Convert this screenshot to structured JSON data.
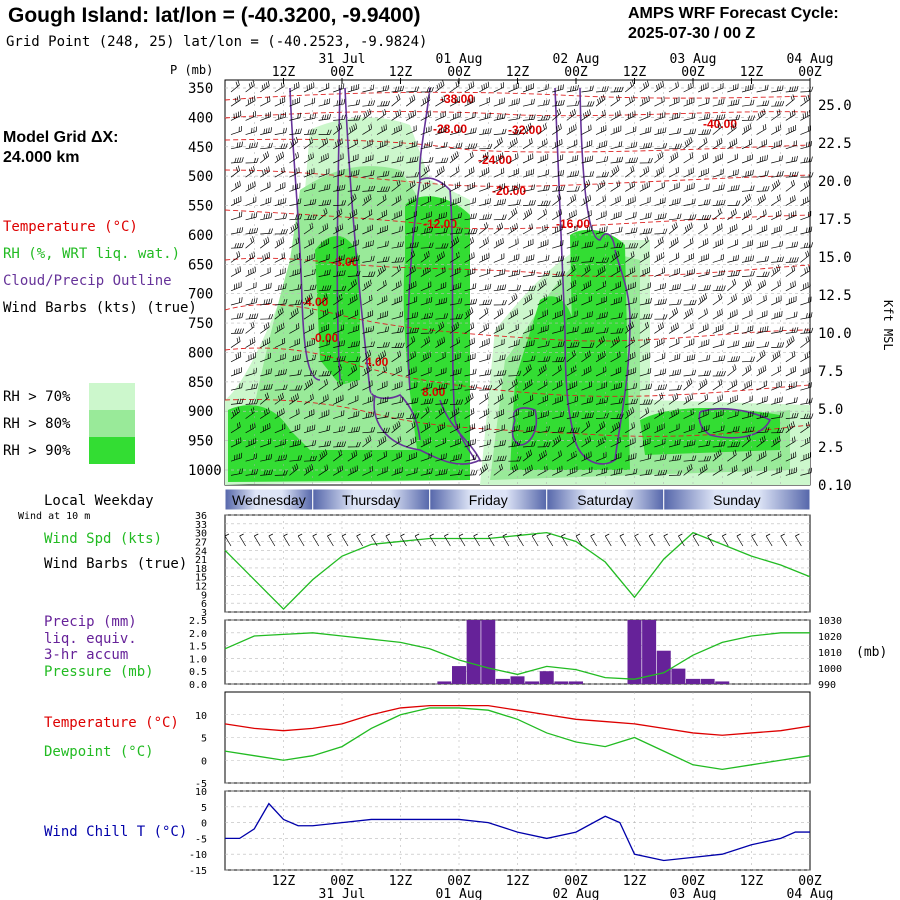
{
  "header": {
    "title": "Gough Island:  lat/lon = (-40.3200, -9.9400)",
    "subtitle": "Grid Point (248, 25) lat/lon = (-40.2523, -9.9824)",
    "cycle_line1": "AMPS WRF Forecast Cycle:",
    "cycle_line2": "2025-07-30 / 00  Z"
  },
  "left_panel": {
    "grid_label": "Model Grid ΔX:",
    "grid_value": " 24.000 km",
    "legend_temperature": "Temperature (°C)",
    "legend_rh": "RH (%, WRT liq. wat.)",
    "legend_cloud": "Cloud/Precip Outline",
    "legend_wind": "Wind Barbs (kts) (true)",
    "rh_keys": [
      {
        "label": "RH > 70%",
        "color": "#ccf7cc"
      },
      {
        "label": "RH > 80%",
        "color": "#99ea99"
      },
      {
        "label": "RH > 90%",
        "color": "#33dd33"
      }
    ],
    "weekday_label": "Local Weekday",
    "wind10_label": "Wind at 10 m",
    "wind_spd_label": "Wind Spd (kts)",
    "wind_barbs_label": "Wind Barbs (true)",
    "precip_label1": "Precip (mm)",
    "precip_label2": "liq. equiv.",
    "precip_label3": "3-hr accum",
    "pressure_label": "Pressure (mb)",
    "temp_label": "Temperature (°C)",
    "dewpoint_label": "Dewpoint (°C)",
    "windchill_label": "Wind Chill T (°C)"
  },
  "colors": {
    "temperature": "#dd0000",
    "dewpoint": "#22bb22",
    "cloud": "#663399",
    "wind_chill": "#0000aa",
    "precip": "#662299",
    "pressure": "#22bb22",
    "wind_speed": "#22bb22"
  },
  "time_axis": {
    "top_ticks": [
      "12Z",
      "00Z",
      "12Z",
      "00Z",
      "12Z",
      "00Z",
      "12Z",
      "00Z",
      "12Z",
      "00Z"
    ],
    "date_labels": [
      "31 Jul",
      "01 Aug",
      "02 Aug",
      "03 Aug",
      "04 Aug"
    ],
    "weekdays": [
      "Wednesday",
      "Thursday",
      "Friday",
      "Saturday",
      "Sunday"
    ]
  },
  "chart_data": [
    {
      "type": "heatmap",
      "name": "cross-section",
      "ylabel": "P (mb)",
      "ylabel_right": "Kft MSL",
      "pressure_ticks": [
        350,
        400,
        450,
        500,
        550,
        600,
        650,
        700,
        750,
        800,
        850,
        900,
        950,
        1000
      ],
      "kft_ticks": [
        "25.0",
        "22.5",
        "20.0",
        "17.5",
        "15.0",
        "12.5",
        "10.0",
        "7.5",
        "5.0",
        "2.5",
        "0.10"
      ],
      "temperature_contour_labels": [
        "-38.00",
        "-28.00",
        "-32.00",
        "-24.00",
        "-40.00",
        "-20.00",
        "-12.00",
        "-16.00",
        "-8.00",
        "-4.00",
        "-0.00",
        "4.00",
        "8.00"
      ]
    },
    {
      "type": "line",
      "name": "wind-speed",
      "yticks": [
        3,
        6,
        9,
        12,
        15,
        18,
        21,
        24,
        27,
        30,
        33,
        36
      ],
      "ylim": [
        3,
        36
      ],
      "x_hours": [
        0,
        6,
        12,
        18,
        24,
        30,
        36,
        42,
        48,
        54,
        60,
        66,
        72,
        78,
        84,
        90,
        96,
        102,
        108,
        114,
        120
      ],
      "values": [
        24,
        14,
        4,
        14,
        22,
        26,
        27,
        28,
        28,
        28,
        29,
        30,
        27,
        20,
        8,
        21,
        30,
        26,
        22,
        19,
        15
      ]
    },
    {
      "type": "bar",
      "name": "precip-pressure",
      "yticks": [
        "0.0",
        "0.5",
        "1.0",
        "1.5",
        "2.0",
        "2.5"
      ],
      "yticks_right": [
        "990",
        "1000",
        "1010",
        "1020",
        "1030"
      ],
      "ylim": [
        0,
        2.5
      ],
      "ylim_right": [
        990,
        1030
      ],
      "precip_x_hours": [
        45,
        48,
        51,
        54,
        57,
        60,
        63,
        66,
        69,
        72,
        84,
        87,
        90,
        93,
        96,
        99,
        102
      ],
      "precip_values": [
        0.1,
        0.7,
        2.5,
        2.5,
        0.2,
        0.3,
        0.1,
        0.5,
        0.1,
        0.1,
        2.5,
        2.5,
        1.3,
        0.6,
        0.2,
        0.2,
        0.1
      ],
      "pressure_x_hours": [
        0,
        6,
        12,
        18,
        24,
        30,
        36,
        42,
        48,
        54,
        60,
        66,
        72,
        78,
        84,
        90,
        96,
        102,
        108,
        114,
        120
      ],
      "pressure_values": [
        1012,
        1020,
        1021,
        1022,
        1020,
        1018,
        1016,
        1012,
        1005,
        1000,
        996,
        1001,
        999,
        994,
        993,
        997,
        1008,
        1016,
        1020,
        1022,
        1022
      ]
    },
    {
      "type": "line",
      "name": "temperature-dewpoint",
      "yticks": [
        -5,
        0,
        5,
        10
      ],
      "ylim": [
        -5,
        15
      ],
      "x_hours": [
        0,
        6,
        12,
        18,
        24,
        30,
        36,
        42,
        48,
        54,
        60,
        66,
        72,
        78,
        84,
        90,
        96,
        102,
        108,
        114,
        120
      ],
      "series": [
        {
          "name": "Temperature",
          "values": [
            8,
            7,
            6.5,
            7,
            8,
            10,
            11.5,
            12,
            12,
            12,
            11,
            10,
            9,
            8.5,
            8,
            7,
            6,
            5.5,
            6,
            6.5,
            7.5
          ]
        },
        {
          "name": "Dewpoint",
          "values": [
            2,
            1,
            0,
            1,
            3,
            7,
            10,
            11.5,
            11.5,
            11,
            9,
            6,
            4,
            3,
            5,
            2,
            -1,
            -2,
            -1,
            0,
            1
          ]
        }
      ]
    },
    {
      "type": "line",
      "name": "wind-chill",
      "yticks": [
        -15,
        -10,
        -5,
        0,
        5,
        10
      ],
      "ylim": [
        -15,
        10
      ],
      "x_hours": [
        0,
        3,
        6,
        9,
        12,
        15,
        18,
        24,
        30,
        36,
        42,
        48,
        54,
        60,
        66,
        72,
        78,
        81,
        84,
        90,
        96,
        102,
        108,
        114,
        117,
        120
      ],
      "values": [
        -5,
        -5,
        -2,
        6,
        1,
        -1,
        -1,
        0,
        1,
        1,
        1,
        1,
        0,
        -3,
        -5,
        -3,
        2,
        0,
        -10,
        -12,
        -11,
        -10,
        -7,
        -5,
        -3,
        -3
      ]
    }
  ]
}
